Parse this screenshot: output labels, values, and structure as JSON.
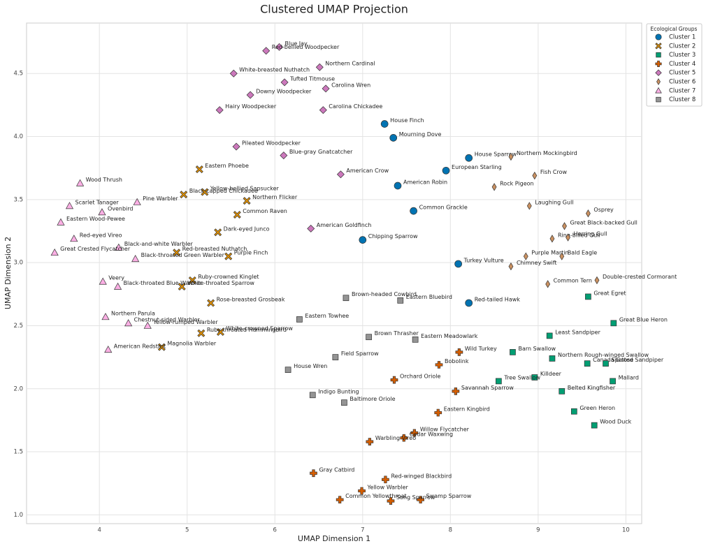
{
  "chart_data": {
    "type": "scatter",
    "title": "Clustered UMAP Projection",
    "x_label": "UMAP Dimension 1",
    "y_label": "UMAP Dimension 2",
    "legend_title": "Ecological Groups",
    "legend_position": "outside upper right",
    "grid": true,
    "xlim": [
      3.17,
      10.18
    ],
    "ylim": [
      0.93,
      4.9
    ],
    "xticks": [
      4,
      5,
      6,
      7,
      8,
      9,
      10
    ],
    "yticks": [
      {
        "value": 1,
        "label": "1.0"
      },
      1.5,
      {
        "value": 2,
        "label": "2.0"
      },
      2.5,
      {
        "value": 3,
        "label": "3.0"
      },
      3.5,
      {
        "value": 4,
        "label": "4.0"
      },
      4.5
    ],
    "series": [
      {
        "name": "Cluster 1",
        "color": "#0173b2",
        "marker": "circle",
        "labels": [
          "House Finch",
          "Mourning Dove",
          "House Sparrow",
          "European Starling",
          "American Robin",
          "Common Grackle",
          "Chipping Sparrow",
          "Turkey Vulture",
          "Red-tailed Hawk"
        ],
        "x": [
          7.25,
          7.35,
          8.21,
          7.95,
          7.4,
          7.58,
          7.0,
          8.09,
          8.21
        ],
        "values": [
          4.1,
          3.99,
          3.83,
          3.73,
          3.61,
          3.41,
          3.18,
          2.99,
          2.68
        ]
      },
      {
        "name": "Cluster 2",
        "color": "#de8f05",
        "marker": "x",
        "labels": [
          "Eastern Phoebe",
          "Yellow-bellied Sapsucker",
          "Black-capped Chickadee",
          "Northern Flicker",
          "Common Raven",
          "Dark-eyed Junco",
          "Red-breasted Nuthatch",
          "Purple Finch",
          "Ruby-crowned Kinglet",
          "White-throated Sparrow",
          "Rose-breasted Grosbeak",
          "White-crowned Sparrow",
          "Ruby-throated Hummingbird",
          "Magnolia Warbler"
        ],
        "x": [
          5.14,
          5.2,
          4.96,
          5.68,
          5.57,
          5.35,
          4.88,
          5.47,
          5.06,
          4.94,
          5.27,
          5.38,
          5.16,
          4.71
        ],
        "values": [
          3.74,
          3.56,
          3.54,
          3.49,
          3.38,
          3.24,
          3.08,
          3.05,
          2.86,
          2.81,
          2.68,
          2.45,
          2.44,
          2.33
        ]
      },
      {
        "name": "Cluster 3",
        "color": "#029e73",
        "marker": "square",
        "labels": [
          "Great Egret",
          "Great Blue Heron",
          "Least Sandpiper",
          "Barn Swallow",
          "Northern Rough-winged Swallow",
          "Canada Goose",
          "Spotted Sandpiper",
          "Mallard",
          "Killdeer",
          "Tree Swallow",
          "Belted Kingfisher",
          "Green Heron",
          "Wood Duck"
        ],
        "x": [
          9.57,
          9.86,
          9.13,
          8.71,
          9.16,
          9.56,
          9.77,
          9.85,
          8.96,
          8.55,
          9.27,
          9.41,
          9.64
        ],
        "values": [
          2.73,
          2.52,
          2.42,
          2.29,
          2.24,
          2.2,
          2.2,
          2.06,
          2.09,
          2.06,
          1.98,
          1.82,
          1.71
        ]
      },
      {
        "name": "Cluster 4",
        "color": "#d55e00",
        "marker": "plus",
        "labels": [
          "Wild Turkey",
          "Bobolink",
          "Orchard Oriole",
          "Savannah Sparrow",
          "Eastern Kingbird",
          "Willow Flycatcher",
          "Cedar Waxwing",
          "Warbling Vireo",
          "Gray Catbird",
          "Red-winged Blackbird",
          "Yellow Warbler",
          "Swamp Sparrow",
          "Common Yellowthroat",
          "Song Sparrow"
        ],
        "x": [
          8.1,
          7.87,
          7.36,
          8.06,
          7.86,
          7.59,
          7.47,
          7.08,
          6.44,
          7.26,
          6.99,
          7.66,
          6.74,
          7.32
        ],
        "values": [
          2.29,
          2.19,
          2.07,
          1.98,
          1.81,
          1.65,
          1.61,
          1.58,
          1.33,
          1.28,
          1.19,
          1.12,
          1.12,
          1.11
        ]
      },
      {
        "name": "Cluster 5",
        "color": "#cc78bc",
        "marker": "diamond",
        "labels": [
          "Blue Jay",
          "Red-bellied Woodpecker",
          "Northern Cardinal",
          "White-breasted Nuthatch",
          "Tufted Titmouse",
          "Carolina Wren",
          "Downy Woodpecker",
          "Hairy Woodpecker",
          "Carolina Chickadee",
          "Pileated Woodpecker",
          "Blue-gray Gnatcatcher",
          "American Crow",
          "American Goldfinch"
        ],
        "x": [
          6.05,
          5.9,
          6.51,
          5.53,
          6.11,
          6.58,
          5.72,
          5.37,
          6.55,
          5.56,
          6.1,
          6.75,
          6.41
        ],
        "values": [
          4.71,
          4.68,
          4.55,
          4.5,
          4.43,
          4.38,
          4.33,
          4.21,
          4.21,
          3.92,
          3.85,
          3.7,
          3.27
        ]
      },
      {
        "name": "Cluster 6",
        "color": "#ca9161",
        "marker": "thin_diamond",
        "labels": [
          "Northern Mockingbird",
          "Fish Crow",
          "Rock Pigeon",
          "Laughing Gull",
          "Osprey",
          "Great Black-backed Gull",
          "Ring-billed Gull",
          "Herring Gull",
          "Bald Eagle",
          "Purple Martin",
          "Chimney Swift",
          "Double-crested Cormorant",
          "Common Tern"
        ],
        "x": [
          8.69,
          8.96,
          8.5,
          8.9,
          9.57,
          9.3,
          9.16,
          9.34,
          9.27,
          8.86,
          8.69,
          9.67,
          9.11
        ],
        "values": [
          3.84,
          3.69,
          3.6,
          3.45,
          3.39,
          3.29,
          3.19,
          3.2,
          3.05,
          3.05,
          2.97,
          2.86,
          2.83
        ]
      },
      {
        "name": "Cluster 7",
        "color": "#fbafe4",
        "marker": "triangle",
        "labels": [
          "Wood Thrush",
          "Scarlet Tanager",
          "Pine Warbler",
          "Ovenbird",
          "Eastern Wood-Pewee",
          "Red-eyed Vireo",
          "Black-and-white Warbler",
          "Great Crested Flycatcher",
          "Black-throated Green Warbler",
          "Veery",
          "Black-throated Blue Warbler",
          "Northern Parula",
          "Chestnut-sided Warbler",
          "Yellow-rumped Warbler",
          "American Redstart"
        ],
        "x": [
          3.78,
          3.66,
          4.43,
          4.03,
          3.56,
          3.71,
          4.22,
          3.49,
          4.41,
          4.04,
          4.21,
          4.07,
          4.33,
          4.55,
          4.1
        ],
        "values": [
          3.63,
          3.45,
          3.48,
          3.4,
          3.32,
          3.19,
          3.12,
          3.08,
          3.03,
          2.85,
          2.81,
          2.57,
          2.52,
          2.5,
          2.31
        ]
      },
      {
        "name": "Cluster 8",
        "color": "#949494",
        "marker": "square",
        "labels": [
          "Brown-headed Cowbird",
          "Eastern Bluebird",
          "Eastern Towhee",
          "Brown Thrasher",
          "Eastern Meadowlark",
          "Field Sparrow",
          "House Wren",
          "Indigo Bunting",
          "Baltimore Oriole"
        ],
        "x": [
          6.81,
          7.43,
          6.28,
          7.07,
          7.6,
          6.69,
          6.15,
          6.43,
          6.79
        ],
        "values": [
          2.72,
          2.7,
          2.55,
          2.41,
          2.39,
          2.25,
          2.15,
          1.95,
          1.89
        ]
      }
    ]
  }
}
